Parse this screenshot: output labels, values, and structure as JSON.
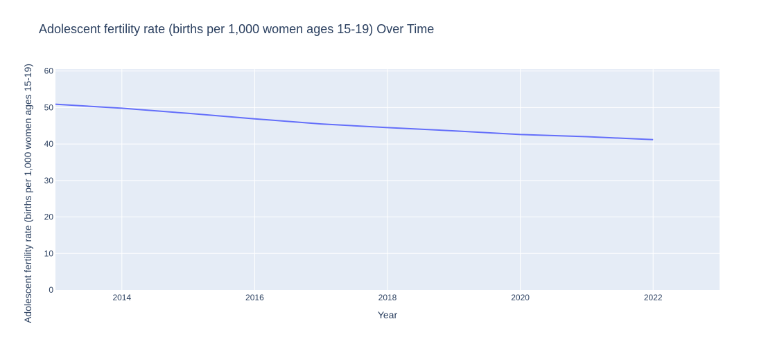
{
  "chart_data": {
    "type": "line",
    "title": "Adolescent fertility rate (births per 1,000 women ages 15-19) Over Time",
    "xlabel": "Year",
    "ylabel": "Adolescent fertility rate (births per 1,000 women ages 15-19)",
    "x_ticks": [
      "2014",
      "2016",
      "2018",
      "2020",
      "2022"
    ],
    "y_ticks": [
      "0",
      "10",
      "20",
      "30",
      "40",
      "50",
      "60"
    ],
    "xlim": [
      2013,
      2023
    ],
    "ylim": [
      0,
      60.5
    ],
    "grid": true,
    "series": [
      {
        "x": [
          2013,
          2014,
          2015,
          2016,
          2017,
          2018,
          2019,
          2020,
          2021,
          2022
        ],
        "y": [
          50.9,
          49.8,
          48.4,
          46.9,
          45.5,
          44.5,
          43.6,
          42.6,
          42.0,
          41.2
        ]
      }
    ]
  },
  "colors": {
    "plot_background": "#e5ecf6",
    "grid": "#ffffff",
    "line": "#636efa",
    "text": "#2a3f5f"
  }
}
